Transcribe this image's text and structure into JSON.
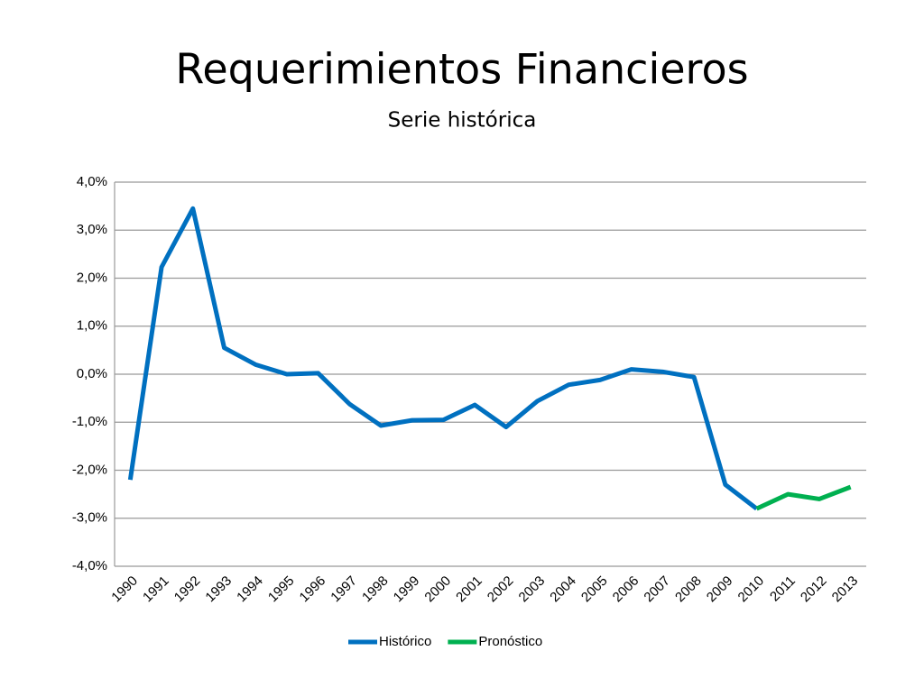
{
  "chart_data": {
    "type": "line",
    "title": "Requerimientos Financieros",
    "subtitle": "Serie histórica",
    "categories": [
      "1990",
      "1991",
      "1992",
      "1993",
      "1994",
      "1995",
      "1996",
      "1997",
      "1998",
      "1999",
      "2000",
      "2001",
      "2002",
      "2003",
      "2004",
      "2005",
      "2006",
      "2007",
      "2008",
      "2009",
      "2010",
      "2011",
      "2012",
      "2013"
    ],
    "series": [
      {
        "name": "Histórico",
        "color": "#0070c0",
        "values": [
          -2.2,
          2.23,
          3.45,
          0.55,
          0.2,
          0.0,
          0.02,
          -0.62,
          -1.07,
          -0.96,
          -0.95,
          -0.64,
          -1.1,
          -0.56,
          -0.22,
          -0.12,
          0.1,
          0.05,
          -0.06,
          -2.3,
          -2.8,
          null,
          null,
          null
        ]
      },
      {
        "name": "Pronóstico",
        "color": "#00b050",
        "values": [
          null,
          null,
          null,
          null,
          null,
          null,
          null,
          null,
          null,
          null,
          null,
          null,
          null,
          null,
          null,
          null,
          null,
          null,
          null,
          null,
          -2.8,
          -2.5,
          -2.6,
          -2.35
        ]
      }
    ],
    "ylim": [
      -4,
      4
    ],
    "yticks": [
      {
        "value": 4,
        "label": "4,0%"
      },
      {
        "value": 3,
        "label": "3,0%"
      },
      {
        "value": 2,
        "label": "2,0%"
      },
      {
        "value": 1,
        "label": "1,0%"
      },
      {
        "value": 0,
        "label": "0,0%"
      },
      {
        "value": -1,
        "label": "-1,0%"
      },
      {
        "value": -2,
        "label": "-2,0%"
      },
      {
        "value": -3,
        "label": "-3,0%"
      },
      {
        "value": -4,
        "label": "-4,0%"
      }
    ],
    "grid": true,
    "legend": "bottom"
  }
}
